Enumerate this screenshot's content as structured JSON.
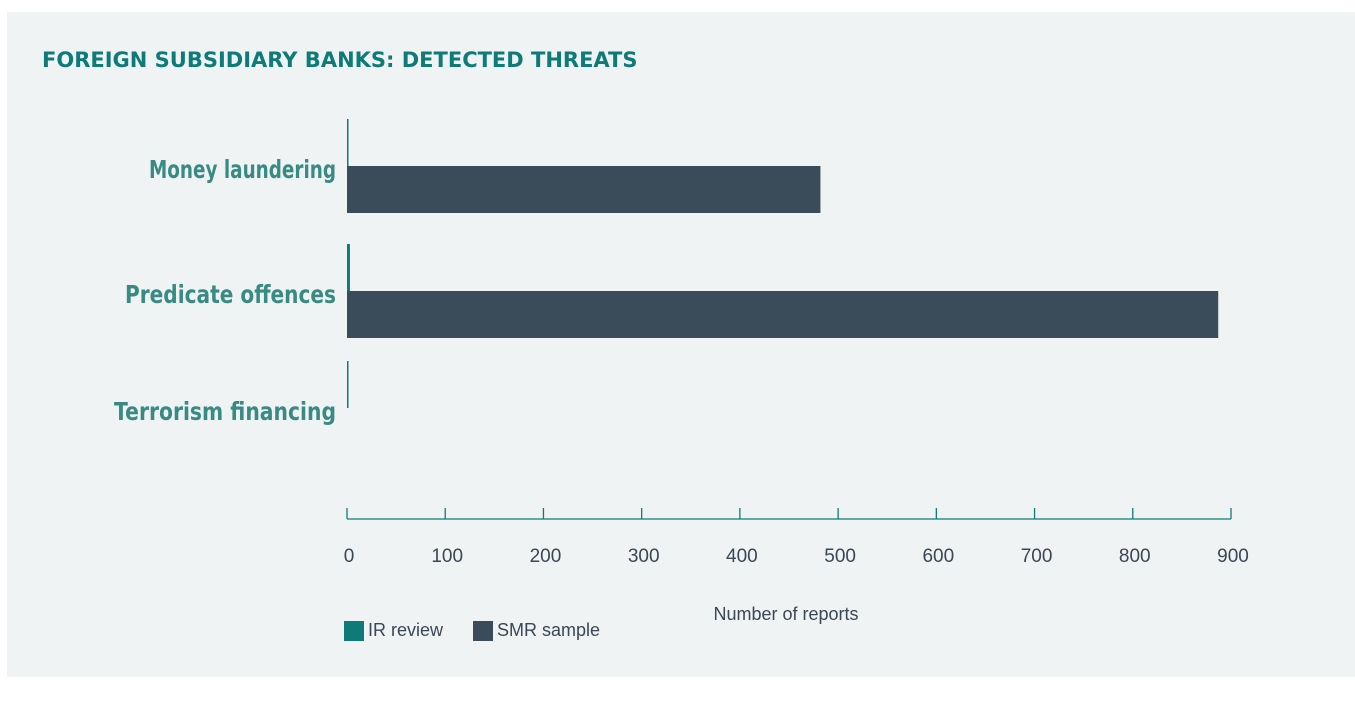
{
  "title": "FOREIGN SUBSIDIARY BANKS: DETECTED THREATS",
  "colors": {
    "ir_review": "#0e7b79",
    "smr_sample": "#3a4b59",
    "category_label": "#3a8a84",
    "axis": "#0e7b79",
    "text": "#3a4754"
  },
  "chart_data": {
    "type": "bar",
    "orientation": "horizontal",
    "title": "FOREIGN SUBSIDIARY BANKS: DETECTED THREATS",
    "categories": [
      "Money laundering",
      "Predicate offences",
      "Terrorism financing"
    ],
    "series": [
      {
        "name": "IR review",
        "values": [
          1,
          3,
          1
        ]
      },
      {
        "name": "SMR sample",
        "values": [
          482,
          887,
          0
        ]
      }
    ],
    "xlabel": "Number of reports",
    "ylabel": "",
    "xlim": [
      0,
      900
    ],
    "xticks": [
      "0",
      "100",
      "200",
      "300",
      "400",
      "500",
      "600",
      "700",
      "800",
      "900"
    ],
    "grid": false,
    "legend_position": "bottom-left"
  }
}
